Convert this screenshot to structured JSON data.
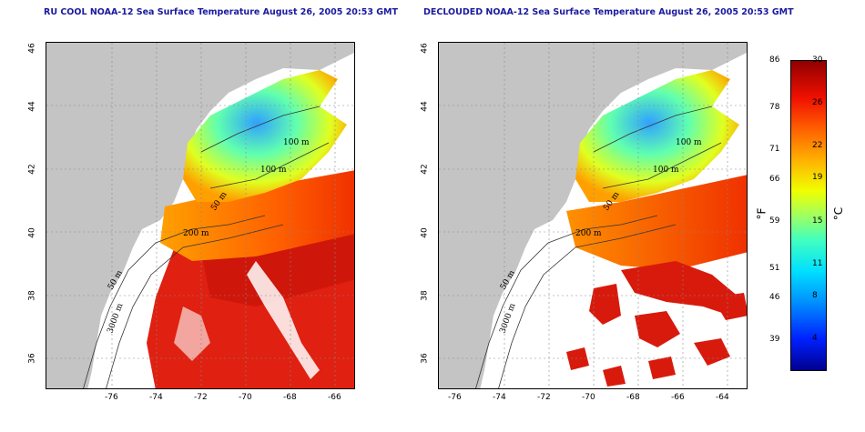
{
  "left_panel": {
    "title": "RU COOL NOAA-12 Sea Surface Temperature August 26, 2005 20:53 GMT",
    "contours": [
      "100 m",
      "100 m",
      "50 m",
      "200 m",
      "50 m",
      "3000 m"
    ]
  },
  "right_panel": {
    "title": "DECLOUDED NOAA-12 Sea Surface Temperature August 26, 2005 20:53 GMT",
    "contours": [
      "100 m",
      "100 m",
      "50 m",
      "200 m",
      "50 m",
      "3000 m"
    ]
  },
  "axes": {
    "longitude_ticks": [
      "-76",
      "-74",
      "-72",
      "-70",
      "-68",
      "-66",
      "-64"
    ],
    "latitude_ticks": [
      "46",
      "44",
      "42",
      "40",
      "38",
      "36"
    ]
  },
  "colorbar": {
    "fahrenheit_ticks": [
      "86",
      "78",
      "71",
      "66",
      "59",
      "51",
      "46",
      "39"
    ],
    "celsius_ticks": [
      "30",
      "26",
      "22",
      "19",
      "15",
      "11",
      "8",
      "4"
    ],
    "fahrenheit_unit": "°F",
    "celsius_unit": "°C",
    "colors": [
      "#00008f",
      "#0020ff",
      "#0090ff",
      "#00e0ff",
      "#40ffc0",
      "#a0ff60",
      "#f0ff00",
      "#ffb000",
      "#ff6000",
      "#f01000",
      "#900000"
    ]
  },
  "palette": {
    "land": "#c4c4c4",
    "no_data": "#ffffff",
    "title_color": "#1a1aa0"
  }
}
